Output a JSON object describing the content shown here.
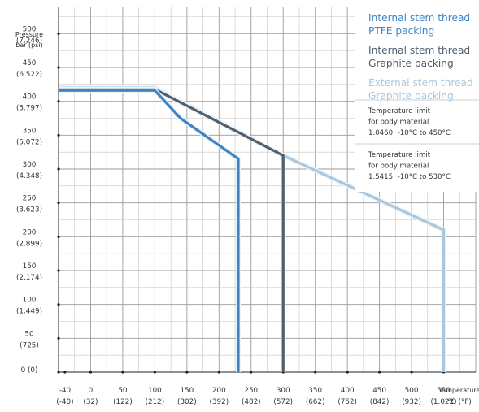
{
  "chart_data": {
    "type": "line",
    "title": "",
    "ylabel": [
      "Pressure",
      "bar (psi)"
    ],
    "xlabel": [
      "Temperature",
      "°C (°F)"
    ],
    "xlim": [
      -50,
      600
    ],
    "ylim": [
      0,
      540
    ],
    "x_ticks": [
      {
        "value": -40,
        "main": "-40",
        "sub": "(-40)"
      },
      {
        "value": 0,
        "main": "0",
        "sub": "(32)"
      },
      {
        "value": 50,
        "main": "50",
        "sub": "(122)"
      },
      {
        "value": 100,
        "main": "100",
        "sub": "(212)"
      },
      {
        "value": 150,
        "main": "150",
        "sub": "(302)"
      },
      {
        "value": 200,
        "main": "200",
        "sub": "(392)"
      },
      {
        "value": 250,
        "main": "250",
        "sub": "(482)"
      },
      {
        "value": 300,
        "main": "300",
        "sub": "(572)"
      },
      {
        "value": 350,
        "main": "350",
        "sub": "(662)"
      },
      {
        "value": 400,
        "main": "400",
        "sub": "(752)"
      },
      {
        "value": 450,
        "main": "450",
        "sub": "(842)"
      },
      {
        "value": 500,
        "main": "500",
        "sub": "(932)"
      },
      {
        "value": 550,
        "main": "550",
        "sub": "(1.022)"
      }
    ],
    "y_ticks": [
      {
        "value": 500,
        "main": "500",
        "sub": "(7.246)"
      },
      {
        "value": 450,
        "main": "450",
        "sub": "(6.522)"
      },
      {
        "value": 400,
        "main": "400",
        "sub": "(5.797)"
      },
      {
        "value": 350,
        "main": "350",
        "sub": "(5.072)"
      },
      {
        "value": 300,
        "main": "300",
        "sub": "(4.348)"
      },
      {
        "value": 250,
        "main": "250",
        "sub": "(3.623)"
      },
      {
        "value": 200,
        "main": "200",
        "sub": "(2.899)"
      },
      {
        "value": 150,
        "main": "150",
        "sub": "(2.174)"
      },
      {
        "value": 100,
        "main": "100",
        "sub": "(1.449)"
      },
      {
        "value": 50,
        "main": "50",
        "sub": "(725)"
      },
      {
        "value": 0,
        "main": "0 (0)",
        "sub": ""
      }
    ],
    "series": [
      {
        "name": [
          "External stem thread",
          "Graphite packing"
        ],
        "color": "#a9c8de",
        "points": [
          [
            -50,
            420
          ],
          [
            100,
            420
          ],
          [
            300,
            320
          ],
          [
            550,
            210
          ],
          [
            550,
            0
          ]
        ]
      },
      {
        "name": [
          "Internal stem thread",
          "Graphite packing"
        ],
        "color": "#4f5f6d",
        "points": [
          [
            -50,
            418
          ],
          [
            100,
            418
          ],
          [
            300,
            320
          ],
          [
            300,
            0
          ]
        ]
      },
      {
        "name": [
          "Internal stem thread",
          "PTFE packing"
        ],
        "color": "#3d84c6",
        "points": [
          [
            -50,
            416
          ],
          [
            100,
            416
          ],
          [
            140,
            375
          ],
          [
            230,
            315
          ],
          [
            230,
            0
          ]
        ]
      }
    ],
    "legend_order": [
      2,
      1,
      0
    ],
    "legend_placement": "top-right",
    "annotations": [
      [
        "Temperature limit",
        "for body material",
        "1.0460: -10°C to 450°C"
      ],
      [
        "Temperature limit",
        "for body material",
        "1.5415: -10°C to 530°C"
      ]
    ],
    "grid": true
  }
}
